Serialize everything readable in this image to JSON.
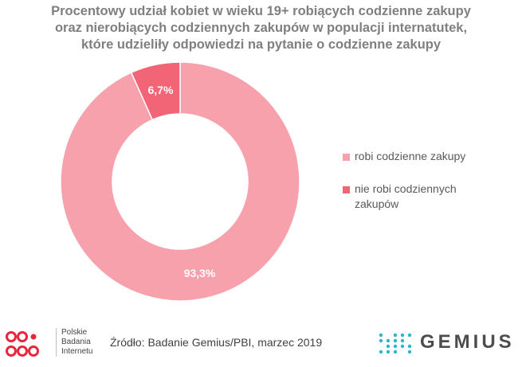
{
  "title": {
    "line1": "Procentowy udział kobiet w wieku 19+ robiących codzienne zakupy",
    "line2": "oraz nierobiących codziennych zakupów w populacji internatutek,",
    "line3": "które udzieliły odpowiedzi na pytanie o codzienne zakupy"
  },
  "chart_data": {
    "type": "pie",
    "subtype": "donut",
    "title": "Procentowy udział kobiet w wieku 19+ robiących codzienne zakupy oraz nierobiących codziennych zakupów w populacji internatutek, które udzieliły odpowiedzi na pytanie o codzienne zakupy",
    "categories": [
      "robi codzienne zakupy",
      "nie robi codziennych zakupów"
    ],
    "values": [
      93.3,
      6.7
    ],
    "labels": [
      "93,3%",
      "6,7%"
    ],
    "colors": [
      "#f7a1ad",
      "#f16577"
    ],
    "legend_position": "right"
  },
  "legend": {
    "items": [
      {
        "label": "robi codzienne zakupy",
        "color": "#f7a1ad"
      },
      {
        "label_line1": "nie robi codziennych",
        "label_line2": "zakupów",
        "color": "#f16577"
      }
    ]
  },
  "footer": {
    "pbi_line1": "Polskie",
    "pbi_line2": "Badania",
    "pbi_line3": "Internetu",
    "source": "Źródło: Badanie Gemius/PBI, marzec 2019",
    "gemius": "GEMIUS",
    "pbi_color": "#e8263d",
    "gemius_color": "#2ab8c6"
  }
}
